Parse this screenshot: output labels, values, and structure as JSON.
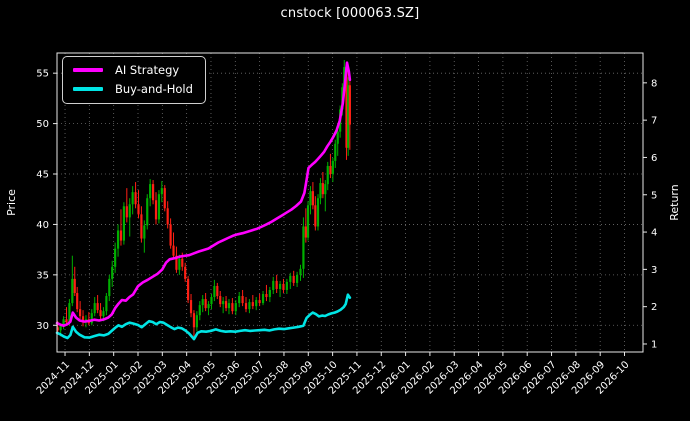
{
  "title": "cnstock [000063.SZ]",
  "legend": {
    "items": [
      {
        "label": "AI Strategy",
        "color": "#ff00ff"
      },
      {
        "label": "Buy-and-Hold",
        "color": "#00e5e5"
      }
    ]
  },
  "chart_data": {
    "type": "candlestick",
    "title": "cnstock [000063.SZ]",
    "background": "#000000",
    "grid": "dotted",
    "legend_position": "upper-left",
    "x_axis": {
      "tick_labels": [
        "2024-11",
        "2024-12",
        "2025-01",
        "2025-02",
        "2025-03",
        "2025-04",
        "2025-05",
        "2025-06",
        "2025-07",
        "2025-08",
        "2025-09",
        "2025-10",
        "2025-11",
        "2025-12",
        "2026-01",
        "2026-02",
        "2026-03",
        "2026-04",
        "2026-05",
        "2026-06",
        "2026-07",
        "2026-08",
        "2026-09",
        "2026-10"
      ],
      "range_months": [
        -0.33,
        23.76
      ],
      "label_rotation_deg": 45
    },
    "price_axis": {
      "label": "Price",
      "ticks": [
        30,
        35,
        40,
        45,
        50,
        55
      ],
      "range": [
        27.35,
        57.0
      ]
    },
    "return_axis": {
      "label": "Return",
      "ticks": [
        1,
        2,
        3,
        4,
        5,
        6,
        7,
        8
      ],
      "range": [
        0.785,
        8.8
      ]
    },
    "colors": {
      "up": "#00b000",
      "down": "#ff2015",
      "ai_strategy": "#ff00ff",
      "buy_and_hold": "#00e5e5",
      "grid": "#6e6e6e",
      "axis": "#e8e8e8",
      "text": "#ffffff"
    },
    "candles_note": "[month_offset_from_2024-11, open, high, low, close] ~2-3 day bars, Price axis",
    "candles": [
      [
        -0.3,
        29.8,
        30.4,
        29.2,
        29.5
      ],
      [
        -0.18,
        29.5,
        30.1,
        28.9,
        30.0
      ],
      [
        -0.06,
        30.0,
        30.9,
        29.6,
        30.6
      ],
      [
        0.06,
        30.6,
        31.8,
        30.1,
        30.3
      ],
      [
        0.18,
        30.3,
        32.6,
        30.0,
        32.2
      ],
      [
        0.3,
        32.2,
        36.9,
        31.9,
        34.6
      ],
      [
        0.4,
        34.6,
        35.8,
        32.9,
        33.2
      ],
      [
        0.5,
        33.2,
        33.8,
        31.3,
        31.6
      ],
      [
        0.62,
        31.6,
        32.4,
        30.6,
        30.9
      ],
      [
        0.74,
        30.9,
        31.5,
        29.9,
        30.3
      ],
      [
        0.86,
        30.3,
        31.0,
        29.8,
        30.6
      ],
      [
        0.98,
        30.6,
        31.3,
        30.0,
        30.2
      ],
      [
        1.1,
        30.2,
        31.6,
        30.0,
        31.2
      ],
      [
        1.22,
        31.2,
        32.8,
        30.9,
        32.2
      ],
      [
        1.34,
        32.2,
        33.0,
        31.2,
        31.5
      ],
      [
        1.46,
        31.5,
        32.2,
        30.6,
        30.9
      ],
      [
        1.58,
        30.9,
        31.8,
        30.4,
        31.4
      ],
      [
        1.7,
        31.4,
        33.2,
        31.0,
        32.9
      ],
      [
        1.82,
        32.9,
        35.0,
        32.4,
        34.6
      ],
      [
        1.94,
        34.6,
        36.4,
        33.8,
        35.8
      ],
      [
        2.06,
        35.8,
        38.2,
        35.2,
        37.6
      ],
      [
        2.18,
        37.6,
        40.0,
        36.8,
        39.4
      ],
      [
        2.3,
        39.4,
        41.5,
        37.9,
        38.4
      ],
      [
        2.42,
        38.4,
        42.2,
        38.0,
        41.8
      ],
      [
        2.54,
        41.8,
        43.6,
        40.2,
        40.7
      ],
      [
        2.66,
        40.7,
        42.6,
        38.8,
        42.0
      ],
      [
        2.78,
        42.0,
        43.8,
        41.0,
        43.2
      ],
      [
        2.9,
        43.2,
        44.2,
        41.6,
        42.0
      ],
      [
        3.02,
        42.0,
        43.4,
        40.6,
        41.0
      ],
      [
        3.14,
        41.0,
        41.8,
        38.2,
        38.6
      ],
      [
        3.26,
        38.6,
        40.4,
        37.2,
        39.9
      ],
      [
        3.38,
        39.9,
        43.0,
        39.5,
        42.6
      ],
      [
        3.5,
        42.6,
        44.5,
        41.8,
        44.0
      ],
      [
        3.62,
        44.0,
        44.4,
        42.0,
        42.4
      ],
      [
        3.74,
        42.4,
        43.2,
        40.0,
        40.5
      ],
      [
        3.86,
        40.5,
        43.4,
        40.1,
        43.0
      ],
      [
        3.98,
        43.0,
        44.3,
        42.2,
        43.6
      ],
      [
        4.1,
        43.6,
        43.9,
        41.3,
        41.6
      ],
      [
        4.22,
        41.6,
        42.3,
        39.6,
        40.0
      ],
      [
        4.34,
        40.0,
        40.6,
        37.6,
        37.9
      ],
      [
        4.46,
        37.9,
        39.2,
        36.6,
        36.9
      ],
      [
        4.58,
        36.9,
        37.8,
        35.2,
        35.5
      ],
      [
        4.7,
        35.5,
        37.0,
        35.0,
        36.6
      ],
      [
        4.82,
        36.6,
        37.2,
        35.4,
        35.8
      ],
      [
        4.94,
        35.8,
        36.2,
        34.3,
        34.6
      ],
      [
        5.06,
        34.6,
        34.9,
        32.2,
        32.5
      ],
      [
        5.18,
        32.5,
        33.1,
        30.8,
        31.2
      ],
      [
        5.3,
        31.2,
        31.5,
        28.8,
        29.8
      ],
      [
        5.42,
        29.8,
        31.4,
        29.4,
        31.0
      ],
      [
        5.54,
        31.0,
        32.4,
        30.5,
        32.0
      ],
      [
        5.66,
        32.0,
        33.0,
        31.3,
        32.6
      ],
      [
        5.78,
        32.6,
        33.2,
        31.4,
        31.7
      ],
      [
        5.9,
        31.7,
        32.4,
        31.0,
        32.1
      ],
      [
        6.02,
        32.1,
        33.1,
        31.6,
        32.8
      ],
      [
        6.14,
        32.8,
        34.5,
        32.4,
        33.9
      ],
      [
        6.26,
        33.9,
        34.2,
        32.6,
        32.9
      ],
      [
        6.38,
        32.9,
        33.4,
        31.8,
        32.1
      ],
      [
        6.5,
        32.1,
        32.8,
        31.2,
        32.4
      ],
      [
        6.62,
        32.4,
        32.9,
        31.4,
        31.7
      ],
      [
        6.74,
        31.7,
        32.6,
        31.1,
        32.2
      ],
      [
        6.88,
        32.2,
        32.7,
        31.1,
        31.4
      ],
      [
        7.02,
        31.4,
        32.5,
        31.0,
        32.2
      ],
      [
        7.16,
        32.2,
        33.3,
        31.8,
        32.9
      ],
      [
        7.3,
        32.9,
        33.5,
        31.9,
        32.2
      ],
      [
        7.44,
        32.2,
        32.8,
        31.3,
        31.6
      ],
      [
        7.58,
        31.6,
        32.6,
        31.2,
        32.3
      ],
      [
        7.72,
        32.3,
        33.0,
        31.6,
        31.9
      ],
      [
        7.86,
        31.9,
        32.8,
        31.5,
        32.5
      ],
      [
        8.0,
        32.5,
        33.1,
        31.9,
        32.2
      ],
      [
        8.14,
        32.2,
        33.4,
        32.0,
        33.1
      ],
      [
        8.28,
        33.1,
        34.0,
        32.4,
        32.8
      ],
      [
        8.42,
        32.8,
        33.8,
        32.3,
        33.5
      ],
      [
        8.56,
        33.5,
        34.8,
        33.1,
        34.4
      ],
      [
        8.7,
        34.4,
        35.0,
        33.2,
        33.6
      ],
      [
        8.84,
        33.6,
        34.4,
        32.8,
        34.1
      ],
      [
        8.98,
        34.1,
        34.6,
        33.2,
        33.5
      ],
      [
        9.12,
        33.5,
        34.6,
        33.1,
        34.3
      ],
      [
        9.26,
        34.3,
        35.2,
        33.6,
        34.9
      ],
      [
        9.4,
        34.9,
        35.4,
        33.9,
        34.2
      ],
      [
        9.54,
        34.2,
        35.3,
        33.8,
        35.0
      ],
      [
        9.68,
        35.0,
        36.0,
        34.4,
        35.6
      ],
      [
        9.8,
        35.6,
        40.7,
        34.7,
        39.8
      ],
      [
        9.9,
        39.8,
        41.6,
        38.2,
        38.7
      ],
      [
        9.99,
        38.7,
        42.3,
        38.4,
        41.9
      ],
      [
        10.09,
        41.9,
        43.8,
        41.0,
        43.3
      ],
      [
        10.19,
        43.3,
        44.2,
        41.5,
        41.9
      ],
      [
        10.29,
        41.9,
        42.8,
        39.4,
        39.8
      ],
      [
        10.4,
        39.8,
        43.0,
        39.4,
        42.6
      ],
      [
        10.5,
        42.6,
        44.6,
        42.0,
        44.1
      ],
      [
        10.6,
        44.1,
        45.2,
        42.6,
        43.0
      ],
      [
        10.7,
        43.0,
        44.4,
        41.3,
        44.0
      ],
      [
        10.8,
        44.0,
        46.2,
        43.4,
        45.8
      ],
      [
        10.91,
        45.8,
        47.0,
        44.6,
        45.0
      ],
      [
        11.01,
        45.0,
        46.6,
        44.2,
        46.3
      ],
      [
        11.11,
        46.3,
        48.4,
        45.6,
        48.0
      ],
      [
        11.21,
        48.0,
        49.6,
        46.8,
        49.2
      ],
      [
        11.31,
        49.2,
        51.8,
        48.6,
        51.4
      ],
      [
        11.4,
        51.4,
        54.0,
        50.8,
        53.6
      ],
      [
        11.48,
        53.6,
        56.3,
        53.0,
        55.6
      ],
      [
        11.57,
        55.6,
        55.9,
        46.4,
        47.6
      ],
      [
        11.64,
        47.6,
        54.6,
        46.8,
        53.8
      ],
      [
        11.71,
        53.8,
        54.2,
        47.4,
        49.9
      ]
    ],
    "series": [
      {
        "name": "AI Strategy",
        "axis": "return",
        "color": "#ff00ff",
        "points": [
          [
            -0.33,
            1.56
          ],
          [
            -0.2,
            1.52
          ],
          [
            -0.05,
            1.49
          ],
          [
            0.1,
            1.53
          ],
          [
            0.22,
            1.6
          ],
          [
            0.32,
            1.84
          ],
          [
            0.45,
            1.71
          ],
          [
            0.6,
            1.63
          ],
          [
            0.8,
            1.6
          ],
          [
            1.0,
            1.62
          ],
          [
            1.2,
            1.65
          ],
          [
            1.4,
            1.63
          ],
          [
            1.6,
            1.66
          ],
          [
            1.78,
            1.71
          ],
          [
            1.92,
            1.79
          ],
          [
            2.06,
            1.96
          ],
          [
            2.2,
            2.08
          ],
          [
            2.34,
            2.18
          ],
          [
            2.5,
            2.16
          ],
          [
            2.65,
            2.26
          ],
          [
            2.8,
            2.33
          ],
          [
            3.0,
            2.55
          ],
          [
            3.2,
            2.65
          ],
          [
            3.4,
            2.72
          ],
          [
            3.6,
            2.8
          ],
          [
            3.8,
            2.88
          ],
          [
            4.0,
            3.0
          ],
          [
            4.15,
            3.18
          ],
          [
            4.3,
            3.27
          ],
          [
            4.5,
            3.3
          ],
          [
            4.7,
            3.34
          ],
          [
            4.9,
            3.36
          ],
          [
            5.1,
            3.38
          ],
          [
            5.3,
            3.43
          ],
          [
            5.5,
            3.48
          ],
          [
            5.7,
            3.52
          ],
          [
            5.9,
            3.56
          ],
          [
            6.1,
            3.64
          ],
          [
            6.3,
            3.72
          ],
          [
            6.5,
            3.78
          ],
          [
            6.7,
            3.84
          ],
          [
            6.9,
            3.9
          ],
          [
            7.1,
            3.94
          ],
          [
            7.3,
            3.97
          ],
          [
            7.5,
            4.01
          ],
          [
            7.7,
            4.05
          ],
          [
            7.9,
            4.09
          ],
          [
            8.1,
            4.15
          ],
          [
            8.3,
            4.21
          ],
          [
            8.5,
            4.28
          ],
          [
            8.7,
            4.36
          ],
          [
            8.9,
            4.44
          ],
          [
            9.1,
            4.52
          ],
          [
            9.3,
            4.6
          ],
          [
            9.5,
            4.7
          ],
          [
            9.7,
            4.82
          ],
          [
            9.84,
            5.05
          ],
          [
            9.93,
            5.4
          ],
          [
            10.01,
            5.72
          ],
          [
            10.14,
            5.8
          ],
          [
            10.27,
            5.87
          ],
          [
            10.4,
            5.96
          ],
          [
            10.52,
            6.05
          ],
          [
            10.65,
            6.15
          ],
          [
            10.78,
            6.3
          ],
          [
            10.91,
            6.42
          ],
          [
            11.03,
            6.55
          ],
          [
            11.16,
            6.72
          ],
          [
            11.29,
            6.98
          ],
          [
            11.42,
            7.45
          ],
          [
            11.5,
            7.95
          ],
          [
            11.59,
            8.54
          ],
          [
            11.67,
            8.3
          ],
          [
            11.71,
            8.08
          ]
        ]
      },
      {
        "name": "Buy-and-Hold",
        "axis": "return",
        "color": "#00e5e5",
        "points": [
          [
            -0.33,
            1.3
          ],
          [
            -0.2,
            1.26
          ],
          [
            -0.05,
            1.2
          ],
          [
            0.1,
            1.16
          ],
          [
            0.22,
            1.24
          ],
          [
            0.32,
            1.46
          ],
          [
            0.45,
            1.33
          ],
          [
            0.6,
            1.25
          ],
          [
            0.8,
            1.18
          ],
          [
            1.0,
            1.17
          ],
          [
            1.2,
            1.21
          ],
          [
            1.4,
            1.25
          ],
          [
            1.6,
            1.23
          ],
          [
            1.78,
            1.27
          ],
          [
            1.92,
            1.35
          ],
          [
            2.06,
            1.43
          ],
          [
            2.2,
            1.5
          ],
          [
            2.34,
            1.46
          ],
          [
            2.5,
            1.53
          ],
          [
            2.65,
            1.57
          ],
          [
            2.8,
            1.55
          ],
          [
            3.0,
            1.51
          ],
          [
            3.15,
            1.45
          ],
          [
            3.3,
            1.53
          ],
          [
            3.45,
            1.61
          ],
          [
            3.6,
            1.59
          ],
          [
            3.75,
            1.53
          ],
          [
            3.9,
            1.59
          ],
          [
            4.05,
            1.57
          ],
          [
            4.2,
            1.51
          ],
          [
            4.35,
            1.45
          ],
          [
            4.5,
            1.4
          ],
          [
            4.65,
            1.44
          ],
          [
            4.8,
            1.42
          ],
          [
            4.95,
            1.36
          ],
          [
            5.1,
            1.28
          ],
          [
            5.3,
            1.13
          ],
          [
            5.45,
            1.3
          ],
          [
            5.6,
            1.34
          ],
          [
            5.8,
            1.33
          ],
          [
            6.0,
            1.35
          ],
          [
            6.2,
            1.39
          ],
          [
            6.4,
            1.35
          ],
          [
            6.6,
            1.33
          ],
          [
            6.8,
            1.34
          ],
          [
            7.0,
            1.33
          ],
          [
            7.2,
            1.35
          ],
          [
            7.4,
            1.37
          ],
          [
            7.6,
            1.35
          ],
          [
            7.8,
            1.36
          ],
          [
            8.0,
            1.37
          ],
          [
            8.2,
            1.38
          ],
          [
            8.4,
            1.36
          ],
          [
            8.6,
            1.39
          ],
          [
            8.8,
            1.41
          ],
          [
            9.0,
            1.4
          ],
          [
            9.2,
            1.42
          ],
          [
            9.4,
            1.44
          ],
          [
            9.6,
            1.46
          ],
          [
            9.8,
            1.49
          ],
          [
            9.84,
            1.56
          ],
          [
            9.93,
            1.7
          ],
          [
            10.06,
            1.78
          ],
          [
            10.18,
            1.84
          ],
          [
            10.31,
            1.8
          ],
          [
            10.44,
            1.74
          ],
          [
            10.57,
            1.76
          ],
          [
            10.69,
            1.75
          ],
          [
            10.82,
            1.79
          ],
          [
            10.95,
            1.82
          ],
          [
            11.08,
            1.84
          ],
          [
            11.2,
            1.87
          ],
          [
            11.33,
            1.92
          ],
          [
            11.46,
            1.99
          ],
          [
            11.54,
            2.07
          ],
          [
            11.63,
            2.32
          ],
          [
            11.71,
            2.24
          ]
        ]
      }
    ]
  }
}
